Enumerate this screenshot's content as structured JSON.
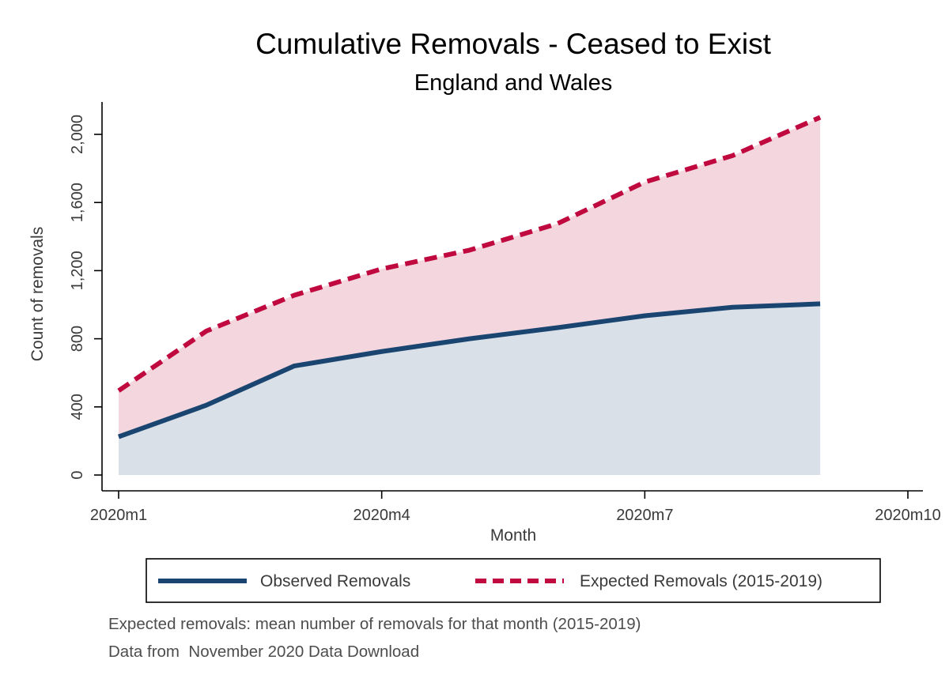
{
  "chart_data": {
    "type": "area",
    "title": "Cumulative Removals - Ceased to Exist",
    "subtitle": "England and Wales",
    "xlabel": "Month",
    "ylabel": "Count of removals",
    "x": [
      1,
      2,
      3,
      4,
      5,
      6,
      7,
      8,
      9
    ],
    "x_ticks": [
      {
        "value": 1,
        "label": "2020m1"
      },
      {
        "value": 4,
        "label": "2020m4"
      },
      {
        "value": 7,
        "label": "2020m7"
      },
      {
        "value": 10,
        "label": "2020m10"
      }
    ],
    "xlim": [
      1,
      10
    ],
    "y_ticks": [
      {
        "value": 0,
        "label": "0"
      },
      {
        "value": 400,
        "label": "400"
      },
      {
        "value": 800,
        "label": "800"
      },
      {
        "value": 1200,
        "label": "1,200"
      },
      {
        "value": 1600,
        "label": "1,600"
      },
      {
        "value": 2000,
        "label": "2,000"
      }
    ],
    "ylim": [
      0,
      2200
    ],
    "grid": false,
    "legend_position": "bottom",
    "series": [
      {
        "name": "Observed Removals",
        "values": [
          225,
          410,
          640,
          725,
          800,
          865,
          935,
          985,
          1005
        ],
        "color": "#1a4570",
        "fill": "#d9e0e8",
        "style": "solid"
      },
      {
        "name": "Expected Removals (2015-2019)",
        "values": [
          495,
          845,
          1055,
          1210,
          1320,
          1475,
          1720,
          1875,
          2100
        ],
        "color": "#c0093f",
        "fill": "#f4d7de",
        "style": "dashed"
      }
    ],
    "notes": [
      "Expected removals: mean number of removals for that month (2015-2019)",
      "Data from  November 2020 Data Download"
    ]
  }
}
